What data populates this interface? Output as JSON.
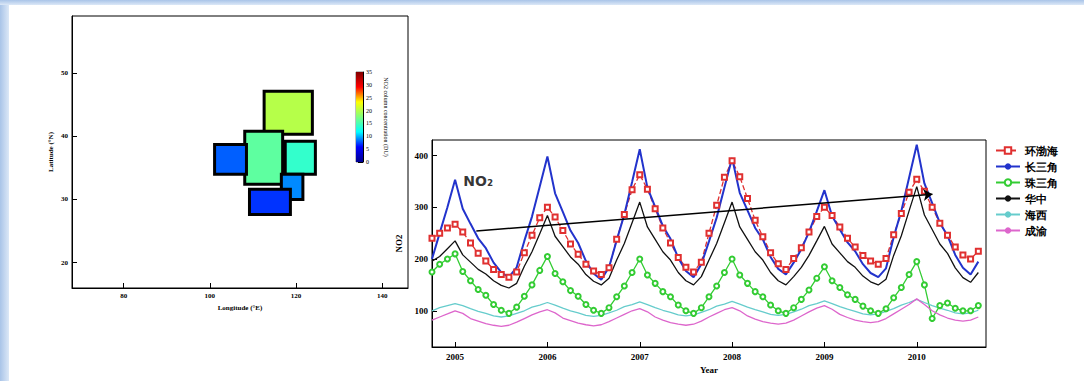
{
  "chart_data": [
    {
      "type": "map_boxes",
      "xlabel": "Longitude (°E)",
      "ylabel": "Latitude (°N)",
      "xlim": [
        68,
        146
      ],
      "xticks": [
        80,
        100,
        120,
        140
      ],
      "ylim": [
        16,
        59
      ],
      "yticks": [
        20,
        30,
        40,
        50
      ],
      "boxes": [
        {
          "lon": [
            112.6,
            123.8
          ],
          "lat": [
            40.3,
            47.1
          ],
          "value": 20
        },
        {
          "lon": [
            108.1,
            116.9
          ],
          "lat": [
            32.4,
            40.8
          ],
          "value": 16
        },
        {
          "lon": [
            101.1,
            108.5
          ],
          "lat": [
            34.0,
            38.7
          ],
          "value": 8
        },
        {
          "lon": [
            117.5,
            124.5
          ],
          "lat": [
            34.0,
            39.2
          ],
          "value": 14
        },
        {
          "lon": [
            116.6,
            121.6
          ],
          "lat": [
            30.0,
            34.0
          ],
          "value": 9
        },
        {
          "lon": [
            109.2,
            118.7
          ],
          "lat": [
            27.6,
            31.6
          ],
          "value": 7
        }
      ],
      "colorbar": {
        "title": "NO2 column concentration (DU)",
        "range": [
          0,
          35
        ],
        "ticks": [
          0,
          5,
          10,
          15,
          20,
          25,
          30,
          35
        ]
      }
    },
    {
      "type": "line",
      "xlabel": "Year",
      "ylabel": "NO2",
      "xlim": [
        2004.75,
        2010.75
      ],
      "xticks": [
        2005,
        2006,
        2007,
        2008,
        2009,
        2010
      ],
      "ylim": [
        30,
        430
      ],
      "yticks": [
        100,
        200,
        300,
        400
      ],
      "legend": "right",
      "annotations": [
        {
          "text": "NO₂",
          "x": 2005.25,
          "y": 351
        }
      ],
      "trend_arrow": {
        "x": [
          2005.23,
          2010.17
        ],
        "y": [
          254,
          325
        ]
      },
      "x": [
        2004.75,
        2004.833,
        2004.917,
        2005,
        2005.083,
        2005.167,
        2005.25,
        2005.333,
        2005.417,
        2005.5,
        2005.583,
        2005.667,
        2005.75,
        2005.833,
        2005.917,
        2006,
        2006.083,
        2006.167,
        2006.25,
        2006.333,
        2006.417,
        2006.5,
        2006.583,
        2006.667,
        2006.75,
        2006.833,
        2006.917,
        2007,
        2007.083,
        2007.167,
        2007.25,
        2007.333,
        2007.417,
        2007.5,
        2007.583,
        2007.667,
        2007.75,
        2007.833,
        2007.917,
        2008,
        2008.083,
        2008.167,
        2008.25,
        2008.333,
        2008.417,
        2008.5,
        2008.583,
        2008.667,
        2008.75,
        2008.833,
        2008.917,
        2009,
        2009.083,
        2009.167,
        2009.25,
        2009.333,
        2009.417,
        2009.5,
        2009.583,
        2009.667,
        2009.75,
        2009.833,
        2009.917,
        2010,
        2010.083,
        2010.167,
        2010.25,
        2010.333,
        2010.417,
        2010.5,
        2010.583,
        2010.667
      ],
      "series": [
        {
          "name": "环渤海",
          "color": "#e03030",
          "marker": "square",
          "line_style": "dashed",
          "values": [
            240,
            250,
            260,
            267,
            252,
            231,
            211,
            196,
            180,
            170,
            165,
            175,
            212,
            246,
            280,
            300,
            281,
            255,
            229,
            209,
            190,
            177,
            170,
            183,
            238,
            286,
            334,
            363,
            335,
            297,
            260,
            231,
            203,
            184,
            175,
            194,
            250,
            304,
            358,
            390,
            359,
            317,
            275,
            243,
            212,
            191,
            180,
            201,
            222,
            252,
            282,
            300,
            284,
            262,
            240,
            223,
            207,
            196,
            190,
            201,
            247,
            288,
            329,
            354,
            331,
            300,
            269,
            246,
            223,
            208,
            200,
            215
          ]
        },
        {
          "name": "长三角",
          "color": "#2233cc",
          "marker": "none",
          "line_style": "solid",
          "values": [
            200,
            250,
            300,
            353,
            297,
            268,
            240,
            221,
            193,
            174,
            165,
            184,
            235,
            282,
            340,
            398,
            327,
            291,
            255,
            231,
            196,
            172,
            160,
            184,
            236,
            286,
            349,
            412,
            338,
            301,
            264,
            239,
            202,
            177,
            165,
            190,
            234,
            280,
            338,
            395,
            328,
            294,
            260,
            238,
            204,
            181,
            170,
            193,
            219,
            252,
            292,
            333,
            283,
            257,
            232,
            215,
            190,
            173,
            165,
            182,
            242,
            293,
            357,
            421,
            346,
            308,
            270,
            245,
            208,
            183,
            170,
            195
          ]
        },
        {
          "name": "珠三角",
          "color": "#33cc33",
          "marker": "circle",
          "line_style": "solid",
          "values": [
            175,
            190,
            200,
            210,
            176,
            158,
            141,
            130,
            112,
            101,
            95,
            107,
            128,
            150,
            178,
            205,
            172,
            156,
            139,
            128,
            112,
            101,
            95,
            106,
            127,
            148,
            174,
            200,
            169,
            153,
            137,
            127,
            111,
            100,
            95,
            106,
            127,
            148,
            174,
            200,
            169,
            153,
            137,
            127,
            111,
            100,
            95,
            106,
            122,
            140,
            163,
            185,
            158,
            145,
            131,
            122,
            109,
            100,
            95,
            104,
            125,
            145,
            170,
            195,
            150,
            85,
            110,
            115,
            105,
            100,
            100,
            110
          ]
        },
        {
          "name": "华中",
          "color": "#111111",
          "marker": "none",
          "line_style": "solid",
          "values": [
            196,
            205,
            220,
            235,
            208,
            194,
            180,
            171,
            158,
            149,
            144,
            153,
            186,
            214,
            249,
            284,
            244,
            224,
            204,
            190,
            170,
            157,
            150,
            163,
            198,
            230,
            270,
            310,
            262,
            238,
            214,
            198,
            174,
            158,
            150,
            166,
            198,
            230,
            270,
            310,
            262,
            238,
            214,
            198,
            174,
            158,
            150,
            166,
            184,
            207,
            235,
            263,
            229,
            212,
            195,
            184,
            167,
            156,
            150,
            161,
            207,
            245,
            293,
            340,
            285,
            257,
            229,
            211,
            183,
            164,
            155,
            174
          ]
        },
        {
          "name": "海西",
          "color": "#66cccc",
          "marker": "none",
          "line_style": "solid",
          "values": [
            100,
            106,
            110,
            114,
            110,
            104,
            99,
            95,
            90,
            88,
            90,
            95,
            100,
            107,
            111,
            116,
            111,
            105,
            100,
            96,
            91,
            89,
            91,
            96,
            101,
            108,
            112,
            117,
            112,
            106,
            101,
            97,
            92,
            90,
            92,
            97,
            102,
            109,
            113,
            118,
            113,
            107,
            102,
            98,
            93,
            91,
            93,
            98,
            103,
            110,
            114,
            119,
            114,
            108,
            103,
            99,
            94,
            92,
            94,
            99,
            104,
            111,
            116,
            122,
            116,
            110,
            105,
            101,
            96,
            94,
            96,
            101
          ]
        },
        {
          "name": "成渝",
          "color": "#dd66cc",
          "marker": "none",
          "line_style": "solid",
          "values": [
            82,
            88,
            94,
            100,
            95,
            85,
            80,
            75,
            72,
            70,
            72,
            78,
            85,
            92,
            98,
            102,
            96,
            86,
            81,
            76,
            73,
            71,
            73,
            79,
            86,
            93,
            100,
            104,
            98,
            88,
            82,
            77,
            74,
            72,
            74,
            80,
            88,
            95,
            102,
            106,
            100,
            90,
            84,
            79,
            76,
            74,
            76,
            82,
            90,
            98,
            105,
            110,
            103,
            93,
            87,
            82,
            79,
            77,
            79,
            85,
            94,
            103,
            112,
            123,
            112,
            100,
            92,
            86,
            82,
            80,
            82,
            88
          ]
        }
      ]
    }
  ]
}
